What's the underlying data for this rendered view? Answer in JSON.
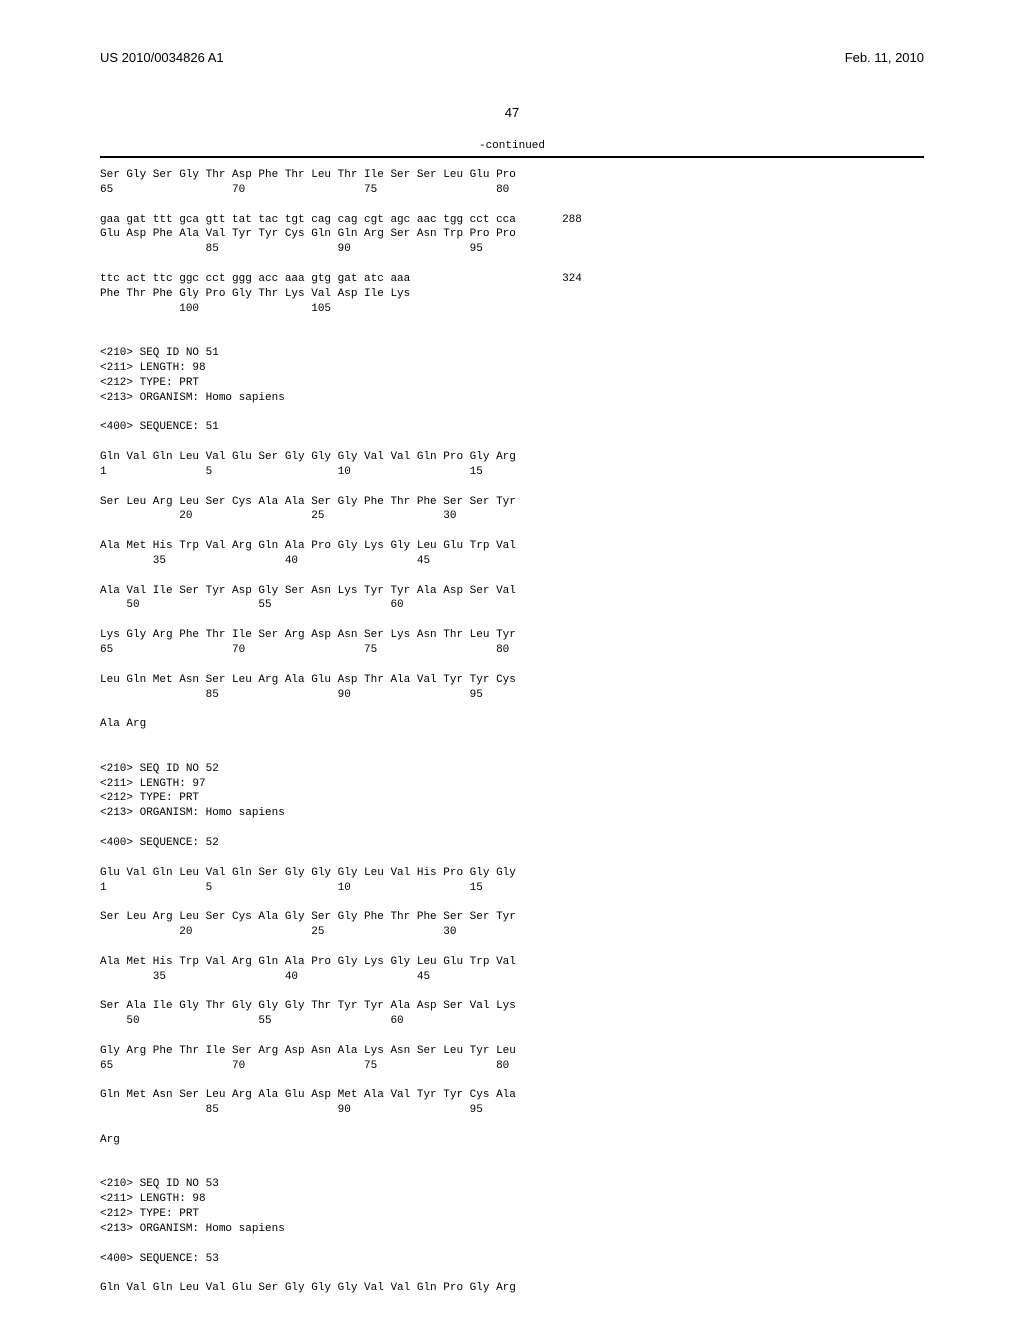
{
  "header": {
    "pub_number": "US 2010/0034826 A1",
    "pub_date": "Feb. 11, 2010"
  },
  "page_number": "47",
  "continued_label": "-continued",
  "seq_text": "Ser Gly Ser Gly Thr Asp Phe Thr Leu Thr Ile Ser Ser Leu Glu Pro\n65                  70                  75                  80\n\ngaa gat ttt gca gtt tat tac tgt cag cag cgt agc aac tgg cct cca       288\nGlu Asp Phe Ala Val Tyr Tyr Cys Gln Gln Arg Ser Asn Trp Pro Pro\n                85                  90                  95\n\nttc act ttc ggc cct ggg acc aaa gtg gat atc aaa                       324\nPhe Thr Phe Gly Pro Gly Thr Lys Val Asp Ile Lys\n            100                 105\n\n\n<210> SEQ ID NO 51\n<211> LENGTH: 98\n<212> TYPE: PRT\n<213> ORGANISM: Homo sapiens\n\n<400> SEQUENCE: 51\n\nGln Val Gln Leu Val Glu Ser Gly Gly Gly Val Val Gln Pro Gly Arg\n1               5                   10                  15\n\nSer Leu Arg Leu Ser Cys Ala Ala Ser Gly Phe Thr Phe Ser Ser Tyr\n            20                  25                  30\n\nAla Met His Trp Val Arg Gln Ala Pro Gly Lys Gly Leu Glu Trp Val\n        35                  40                  45\n\nAla Val Ile Ser Tyr Asp Gly Ser Asn Lys Tyr Tyr Ala Asp Ser Val\n    50                  55                  60\n\nLys Gly Arg Phe Thr Ile Ser Arg Asp Asn Ser Lys Asn Thr Leu Tyr\n65                  70                  75                  80\n\nLeu Gln Met Asn Ser Leu Arg Ala Glu Asp Thr Ala Val Tyr Tyr Cys\n                85                  90                  95\n\nAla Arg\n\n\n<210> SEQ ID NO 52\n<211> LENGTH: 97\n<212> TYPE: PRT\n<213> ORGANISM: Homo sapiens\n\n<400> SEQUENCE: 52\n\nGlu Val Gln Leu Val Gln Ser Gly Gly Gly Leu Val His Pro Gly Gly\n1               5                   10                  15\n\nSer Leu Arg Leu Ser Cys Ala Gly Ser Gly Phe Thr Phe Ser Ser Tyr\n            20                  25                  30\n\nAla Met His Trp Val Arg Gln Ala Pro Gly Lys Gly Leu Glu Trp Val\n        35                  40                  45\n\nSer Ala Ile Gly Thr Gly Gly Gly Thr Tyr Tyr Ala Asp Ser Val Lys\n    50                  55                  60\n\nGly Arg Phe Thr Ile Ser Arg Asp Asn Ala Lys Asn Ser Leu Tyr Leu\n65                  70                  75                  80\n\nGln Met Asn Ser Leu Arg Ala Glu Asp Met Ala Val Tyr Tyr Cys Ala\n                85                  90                  95\n\nArg\n\n\n<210> SEQ ID NO 53\n<211> LENGTH: 98\n<212> TYPE: PRT\n<213> ORGANISM: Homo sapiens\n\n<400> SEQUENCE: 53\n\nGln Val Gln Leu Val Glu Ser Gly Gly Gly Val Val Gln Pro Gly Arg"
}
